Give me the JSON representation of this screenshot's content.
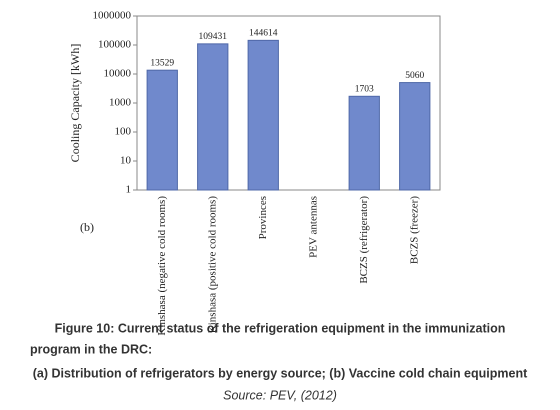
{
  "chart_data": {
    "type": "bar",
    "y_label": "Cooling Capacity [kWh]",
    "annotation": "(b)",
    "categories": [
      "Kinshasa (negative cold rooms)",
      "Kinshasa (positive cold rooms)",
      "Provinces",
      "PEV antennas",
      "BCZS (refrigerator)",
      "BCZS (freezer)"
    ],
    "values": [
      13529,
      109431,
      144614,
      null,
      1703,
      5060
    ],
    "color": "#7089cc",
    "log_scale": true,
    "ylim": [
      1,
      1000000
    ],
    "yticks": [
      1,
      10,
      100,
      1000,
      10000,
      100000,
      1000000
    ],
    "grid": false
  },
  "caption": [
    "Figure 10: Current status of the refrigeration equipment in the immunization",
    "program in the DRC:",
    "(a) Distribution of refrigerators by energy source; (b) Vaccine cold chain equipment",
    "Source: PEV, (2012)"
  ]
}
